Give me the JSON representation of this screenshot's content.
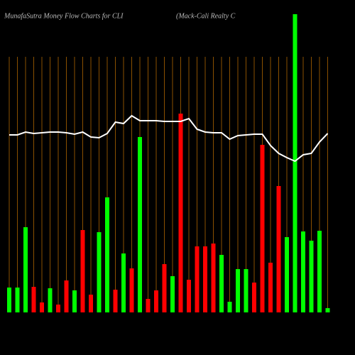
{
  "chart_data": {
    "type": "bar",
    "title": "MunafaSutra  Money Flow  Charts for CLI",
    "subtitle": "(Mack-Cali   Realty C",
    "ylim": [
      0,
      440
    ],
    "series": [
      {
        "type": "bar",
        "values": [
          35,
          35,
          120,
          36,
          14,
          34,
          11,
          45,
          31,
          116,
          25,
          113,
          162,
          32,
          83,
          62,
          247,
          19,
          31,
          68,
          51,
          280,
          46,
          93,
          93,
          97,
          81,
          15,
          61,
          61,
          42,
          236,
          70,
          178,
          106,
          420,
          114,
          101,
          115,
          6
        ],
        "colors": [
          "#00ff00",
          "#00ff00",
          "#00ff00",
          "#ff0000",
          "#ff0000",
          "#00ff00",
          "#ff0000",
          "#ff0000",
          "#00ff00",
          "#ff0000",
          "#ff0000",
          "#00ff00",
          "#00ff00",
          "#ff0000",
          "#00ff00",
          "#ff0000",
          "#00ff00",
          "#ff0000",
          "#ff0000",
          "#ff0000",
          "#00ff00",
          "#ff0000",
          "#ff0000",
          "#ff0000",
          "#ff0000",
          "#ff0000",
          "#00ff00",
          "#00ff00",
          "#00ff00",
          "#00ff00",
          "#ff0000",
          "#ff0000",
          "#ff0000",
          "#ff0000",
          "#00ff00",
          "#00ff00",
          "#00ff00",
          "#00ff00",
          "#00ff00",
          "#00ff00"
        ]
      },
      {
        "type": "line",
        "color": "#ffffff",
        "values": [
          250,
          250,
          254,
          252,
          253,
          254,
          254,
          253,
          251,
          254,
          247,
          246,
          252,
          268,
          266,
          277,
          270,
          270,
          270,
          269,
          269,
          269,
          273,
          258,
          254,
          253,
          253,
          244,
          249,
          250,
          251,
          251,
          235,
          224,
          218,
          213,
          222,
          224,
          240,
          252
        ]
      }
    ]
  }
}
